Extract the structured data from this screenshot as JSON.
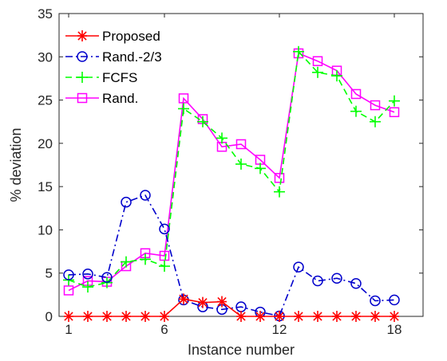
{
  "chart_data": {
    "type": "line",
    "xlabel": "Instance number",
    "ylabel": "% deviation",
    "xlim": [
      0.5,
      19.5
    ],
    "ylim": [
      0,
      35
    ],
    "xticks": [
      1,
      6,
      12,
      18
    ],
    "yticks": [
      0,
      5,
      10,
      15,
      20,
      25,
      30,
      35
    ],
    "grid": false,
    "legend_position": "top-left",
    "x": [
      1,
      2,
      3,
      4,
      5,
      6,
      7,
      8,
      9,
      10,
      11,
      12,
      13,
      14,
      15,
      16,
      17,
      18
    ],
    "series": [
      {
        "name": "Proposed",
        "color": "#ff0000",
        "marker": "asterisk",
        "line": "solid",
        "values": [
          0,
          0,
          0,
          0,
          0,
          0,
          2.0,
          1.6,
          1.7,
          0,
          0,
          0,
          0,
          0,
          0,
          0,
          0,
          0
        ]
      },
      {
        "name": "Rand.-2/3",
        "color": "#0000cc",
        "marker": "circle",
        "line": "dash-dot",
        "values": [
          4.8,
          4.9,
          4.5,
          13.2,
          14.0,
          10.1,
          1.9,
          1.1,
          0.8,
          1.1,
          0.5,
          0.05,
          5.7,
          4.1,
          4.4,
          3.8,
          1.8,
          1.9
        ]
      },
      {
        "name": "FCFS",
        "color": "#00ff00",
        "marker": "plus",
        "line": "dashed",
        "values": [
          4.2,
          3.4,
          3.9,
          6.3,
          6.6,
          5.8,
          24.0,
          22.5,
          20.6,
          17.6,
          17.1,
          14.4,
          30.6,
          28.2,
          27.8,
          23.7,
          22.5,
          24.9
        ]
      },
      {
        "name": "Rand.",
        "color": "#ff00ff",
        "marker": "square",
        "line": "solid",
        "values": [
          3.0,
          4.1,
          4.0,
          5.8,
          7.3,
          7.0,
          25.2,
          22.8,
          19.6,
          19.9,
          18.1,
          16.0,
          30.4,
          29.5,
          28.4,
          25.7,
          24.4,
          23.6
        ]
      }
    ]
  }
}
